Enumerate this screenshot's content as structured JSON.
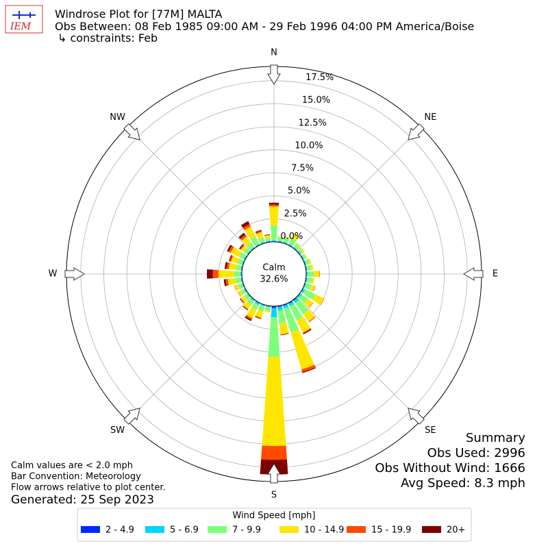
{
  "logo_text": "IEM",
  "chart_data": {
    "type": "windrose",
    "title": "Windrose Plot for [77M] MALTA",
    "subtitle": [
      "Obs Between: 08 Feb 1985 09:00 AM - 29 Feb 1996 04:00 PM America/Boise",
      "↳ constraints: Feb"
    ],
    "calm": {
      "label": "Calm",
      "value": 32.6,
      "value_label": "32.6%"
    },
    "x": [
      0,
      10,
      20,
      30,
      40,
      50,
      60,
      70,
      80,
      90,
      100,
      110,
      120,
      130,
      140,
      150,
      160,
      170,
      180,
      190,
      200,
      210,
      220,
      230,
      240,
      250,
      260,
      270,
      280,
      290,
      300,
      310,
      320,
      330,
      340,
      350
    ],
    "xlim": [
      0,
      360
    ],
    "xticks": [
      {
        "value": 0,
        "label": "N"
      },
      {
        "value": 45,
        "label": "NE"
      },
      {
        "value": 90,
        "label": "E"
      },
      {
        "value": 135,
        "label": "SE"
      },
      {
        "value": 180,
        "label": "S"
      },
      {
        "value": 225,
        "label": "SW"
      },
      {
        "value": 270,
        "label": "W"
      },
      {
        "value": 315,
        "label": "NW"
      }
    ],
    "ylim": [
      0,
      19.06
    ],
    "yticks": [
      {
        "value": 0,
        "label": "0.0%"
      },
      {
        "value": 2.5,
        "label": "2.5%"
      },
      {
        "value": 5,
        "label": "5.0%"
      },
      {
        "value": 7.5,
        "label": "7.5%"
      },
      {
        "value": 10,
        "label": "10.0%"
      },
      {
        "value": 12.5,
        "label": "12.5%"
      },
      {
        "value": 15,
        "label": "15.0%"
      },
      {
        "value": 17.5,
        "label": "17.5%"
      }
    ],
    "grid": true,
    "legend_title": "Wind Speed [mph]",
    "series": [
      {
        "name": "2 - 4.9",
        "color": "#0029ff",
        "values": [
          0.05,
          0.05,
          0.05,
          0.05,
          0.05,
          0.05,
          0.05,
          0.05,
          0.05,
          0.05,
          0.05,
          0.05,
          0.05,
          0.05,
          0.1,
          0.1,
          0.1,
          0.1,
          0.2,
          0.05,
          0.05,
          0.05,
          0.05,
          0.05,
          0.05,
          0.05,
          0.05,
          0.05,
          0.05,
          0.05,
          0.05,
          0.05,
          0.05,
          0.05,
          0.05,
          0.05
        ]
      },
      {
        "name": "5 - 6.9",
        "color": "#00d4ff",
        "values": [
          0.1,
          0.1,
          0.1,
          0.1,
          0.1,
          0.1,
          0.1,
          0.1,
          0.1,
          0.1,
          0.1,
          0.1,
          0.2,
          0.2,
          0.3,
          0.3,
          0.3,
          0.4,
          1.0,
          0.1,
          0.1,
          0.2,
          0.1,
          0.1,
          0.1,
          0.1,
          0.1,
          0.1,
          0.1,
          0.1,
          0.1,
          0.1,
          0.1,
          0.1,
          0.1,
          0.1
        ]
      },
      {
        "name": "7 - 9.9",
        "color": "#7dff7a",
        "values": [
          1.6,
          0.4,
          0.5,
          0.7,
          0.4,
          0.3,
          0.3,
          0.4,
          0.4,
          0.7,
          0.5,
          0.6,
          1.3,
          0.8,
          1.5,
          1.7,
          2.7,
          1.4,
          4.3,
          0.4,
          0.6,
          0.6,
          0.5,
          0.4,
          0.4,
          0.4,
          0.6,
          0.7,
          0.5,
          0.5,
          0.6,
          0.4,
          0.6,
          0.9,
          0.5,
          0.3
        ]
      },
      {
        "name": "10 - 14.9",
        "color": "#ffe600",
        "values": [
          2.1,
          0.05,
          0.15,
          0.5,
          0.15,
          0.15,
          0.05,
          0.15,
          0.25,
          0.6,
          0.25,
          0.4,
          1.0,
          0.7,
          1.0,
          1.5,
          4.2,
          1.2,
          9.7,
          0.15,
          0.7,
          1.0,
          0.6,
          0.4,
          0.3,
          0.4,
          0.8,
          1.7,
          0.8,
          0.7,
          1.0,
          0.4,
          0.8,
          1.2,
          0.6,
          0.3
        ]
      },
      {
        "name": "15 - 19.9",
        "color": "#ff4a00",
        "values": [
          0.2,
          0,
          0,
          0.05,
          0,
          0,
          0,
          0,
          0,
          0.05,
          0,
          0.05,
          0.05,
          0.05,
          0.1,
          0.1,
          0.3,
          0.05,
          1.5,
          0,
          0.1,
          0.2,
          0.1,
          0.1,
          0.05,
          0.05,
          0.25,
          0.6,
          0.25,
          0.15,
          0.25,
          0.15,
          0.25,
          0.3,
          0.15,
          0.05
        ]
      },
      {
        "name": "20+",
        "color": "#7f0000",
        "values": [
          0.2,
          0,
          0,
          0,
          0,
          0,
          0,
          0,
          0,
          0,
          0,
          0,
          0,
          0,
          0,
          0.1,
          0.1,
          0.05,
          1.6,
          0,
          0.05,
          0.15,
          0.05,
          0.05,
          0,
          0,
          0.2,
          0.65,
          0.2,
          0.1,
          0.2,
          0.1,
          0.25,
          0.35,
          0.1,
          0.05
        ]
      }
    ]
  },
  "summary": {
    "title": "Summary",
    "lines": [
      "Obs Used: 2996",
      "Obs Without Wind: 1666",
      "Avg Speed: 8.3 mph"
    ]
  },
  "notes": [
    "Calm values are < 2.0 mph",
    "Bar Convention: Meteorology",
    "Flow arrows relative to plot center."
  ],
  "generated": "Generated: 25 Sep 2023"
}
